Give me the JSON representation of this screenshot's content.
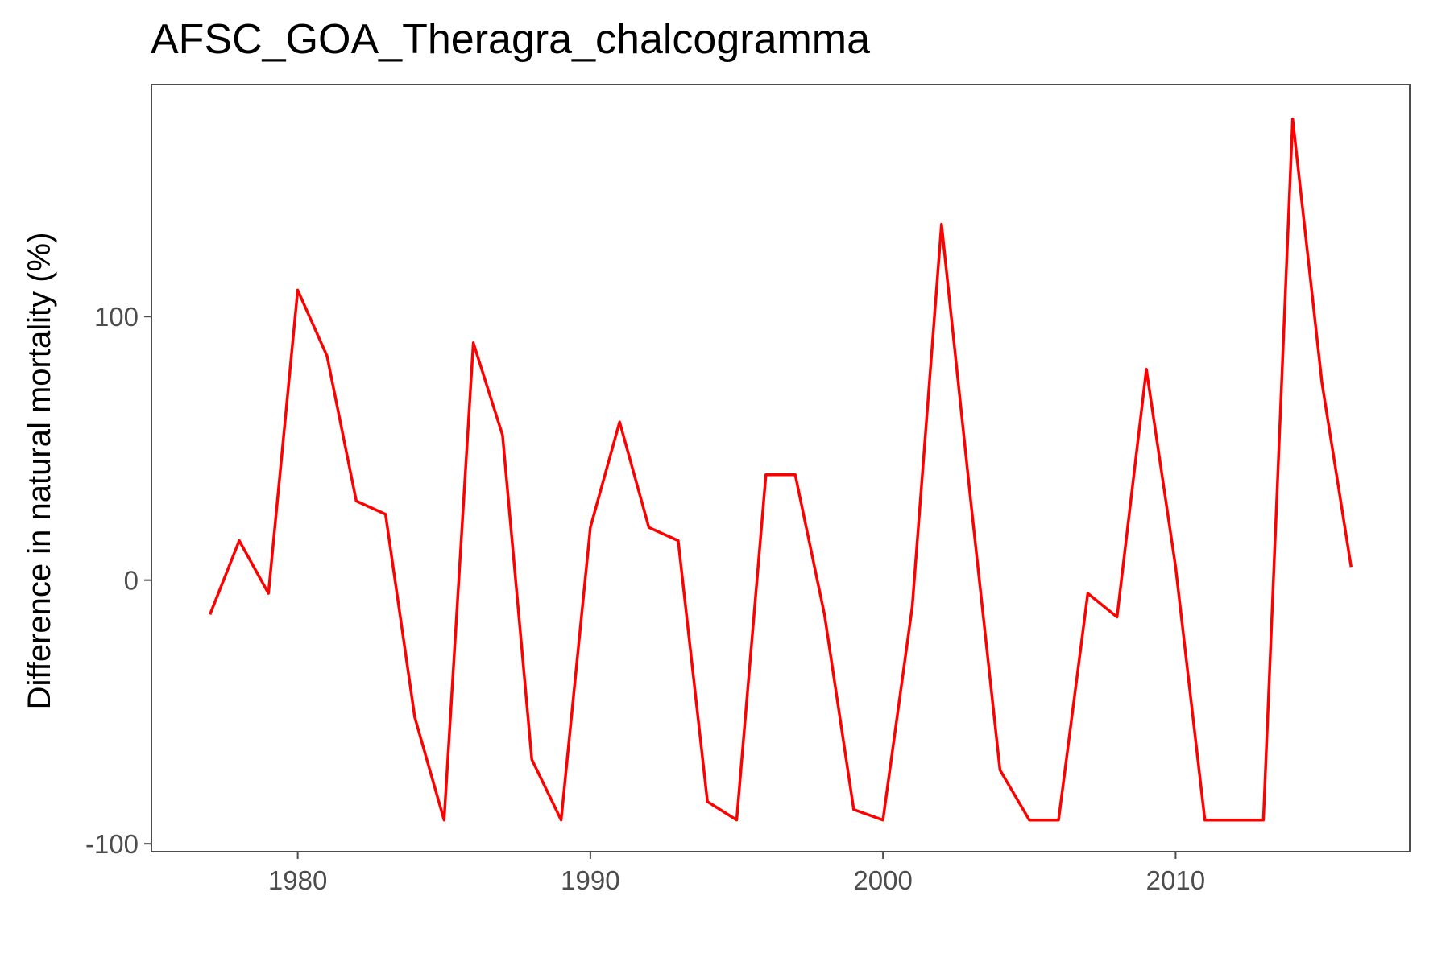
{
  "chart_data": {
    "type": "line",
    "title": "AFSC_GOA_Theragra_chalcogramma",
    "xlabel": "",
    "ylabel": "Difference in natural mortality (%)",
    "xlim": [
      1975,
      2018
    ],
    "ylim": [
      -103,
      188
    ],
    "xticks": [
      1980,
      1990,
      2000,
      2010
    ],
    "yticks": [
      -100,
      0,
      100
    ],
    "grid": false,
    "legend": "none",
    "colors": {
      "line": "#ff0000",
      "panel_border": "#4d4d4d",
      "tick_label": "#4d4d4d"
    },
    "series": [
      {
        "x": [
          1977,
          1978,
          1979,
          1980,
          1981,
          1982,
          1983,
          1984,
          1985,
          1986,
          1987,
          1988,
          1989,
          1990,
          1991,
          1992,
          1993,
          1994,
          1995,
          1996,
          1997,
          1998,
          1999,
          2000,
          2001,
          2002,
          2003,
          2004,
          2005,
          2006,
          2007,
          2008,
          2009,
          2010,
          2011,
          2012,
          2013,
          2014,
          2015,
          2016
        ],
        "values": [
          -13,
          15,
          -5,
          110,
          85,
          30,
          25,
          -52,
          -91,
          90,
          55,
          -68,
          -91,
          20,
          60,
          20,
          15,
          -84,
          -91,
          40,
          40,
          -13,
          -87,
          -91,
          -10,
          135,
          30,
          -72,
          -91,
          -91,
          -5,
          -14,
          80,
          5,
          -91,
          -91,
          -91,
          175,
          75,
          5
        ]
      }
    ]
  }
}
